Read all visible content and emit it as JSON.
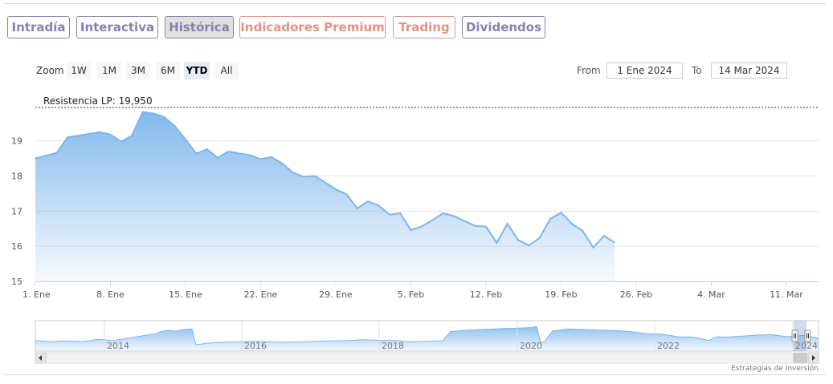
{
  "tabs": [
    {
      "label": "Intradía",
      "color": "purple",
      "active": false
    },
    {
      "label": "Interactiva",
      "color": "purple",
      "active": false
    },
    {
      "label": "Histórica",
      "color": "purple",
      "active": true
    },
    {
      "label": "Indicadores Premium",
      "color": "red",
      "active": false
    },
    {
      "label": "Trading",
      "color": "red",
      "active": false
    },
    {
      "label": "Dividendos",
      "color": "purple",
      "active": false
    }
  ],
  "zoom": {
    "label": "Zoom",
    "buttons": [
      "1W",
      "1M",
      "3M",
      "6M",
      "YTD",
      "All"
    ],
    "selected": "YTD"
  },
  "range": {
    "from_label": "From",
    "from_value": "1 Ene 2024",
    "to_label": "To",
    "to_value": "14 Mar 2024"
  },
  "credit": "Estrategias de Inversión",
  "colors": {
    "line": "#7cb5ec",
    "area_top": "#7cb5ec",
    "purple": "#8a80b0",
    "red": "#e0938a"
  },
  "chart_data": {
    "type": "area",
    "xlabel": "",
    "ylabel": "",
    "ylim": [
      15,
      20.5
    ],
    "xlim": [
      1,
      74
    ],
    "y_ticks": [
      15,
      16,
      17,
      18,
      19
    ],
    "x_ticks": [
      {
        "day": 1,
        "label": "1. Ene"
      },
      {
        "day": 8,
        "label": "8. Ene"
      },
      {
        "day": 15,
        "label": "15. Ene"
      },
      {
        "day": 22,
        "label": "22. Ene"
      },
      {
        "day": 29,
        "label": "29. Ene"
      },
      {
        "day": 36,
        "label": "5. Feb"
      },
      {
        "day": 43,
        "label": "12. Feb"
      },
      {
        "day": 50,
        "label": "19. Feb"
      },
      {
        "day": 57,
        "label": "26. Feb"
      },
      {
        "day": 64,
        "label": "4. Mar"
      },
      {
        "day": 71,
        "label": "11. Mar"
      }
    ],
    "resistance": {
      "label": "Resistencia LP: 19,950",
      "value": 19.95
    },
    "series": [
      {
        "x": [
          1,
          2,
          3,
          4,
          5,
          6,
          7,
          8,
          9,
          10,
          11,
          12,
          13,
          14,
          15,
          16,
          17,
          18,
          19,
          20,
          21,
          22,
          23,
          24,
          25,
          26,
          27,
          28,
          29,
          30,
          31,
          32,
          33,
          34,
          35,
          36,
          37,
          38,
          39,
          40,
          41,
          42,
          43,
          44,
          45,
          46,
          47,
          48,
          49,
          50,
          51,
          52,
          53,
          54,
          55,
          56,
          57,
          58,
          59,
          60,
          61,
          62,
          63,
          64,
          65,
          66,
          67,
          68,
          69,
          70,
          71,
          72,
          73,
          74
        ],
        "values": [
          18.5,
          18.58,
          18.66,
          19.1,
          19.15,
          19.2,
          19.25,
          19.18,
          18.98,
          19.15,
          19.82,
          19.78,
          19.68,
          19.42,
          19.04,
          18.64,
          18.76,
          18.52,
          18.7,
          18.64,
          18.6,
          18.48,
          18.54,
          18.36,
          18.1,
          17.98,
          18.0,
          17.82,
          17.62,
          17.48,
          17.08,
          17.28,
          17.16,
          16.9,
          16.94,
          16.46,
          16.56,
          16.74,
          16.94,
          16.86,
          16.72,
          16.58,
          16.56,
          16.1,
          16.64,
          16.18,
          16.02,
          16.24,
          16.78,
          16.96,
          16.64,
          16.44,
          15.96,
          16.3,
          16.1,
          null,
          null,
          null,
          null,
          null,
          null,
          null,
          null,
          null,
          null,
          null,
          null,
          null,
          null,
          null,
          null,
          null,
          null,
          null
        ]
      }
    ],
    "navigator": {
      "year_labels": [
        "2014",
        "2016",
        "2018",
        "2020",
        "2022",
        "2024"
      ]
    }
  }
}
